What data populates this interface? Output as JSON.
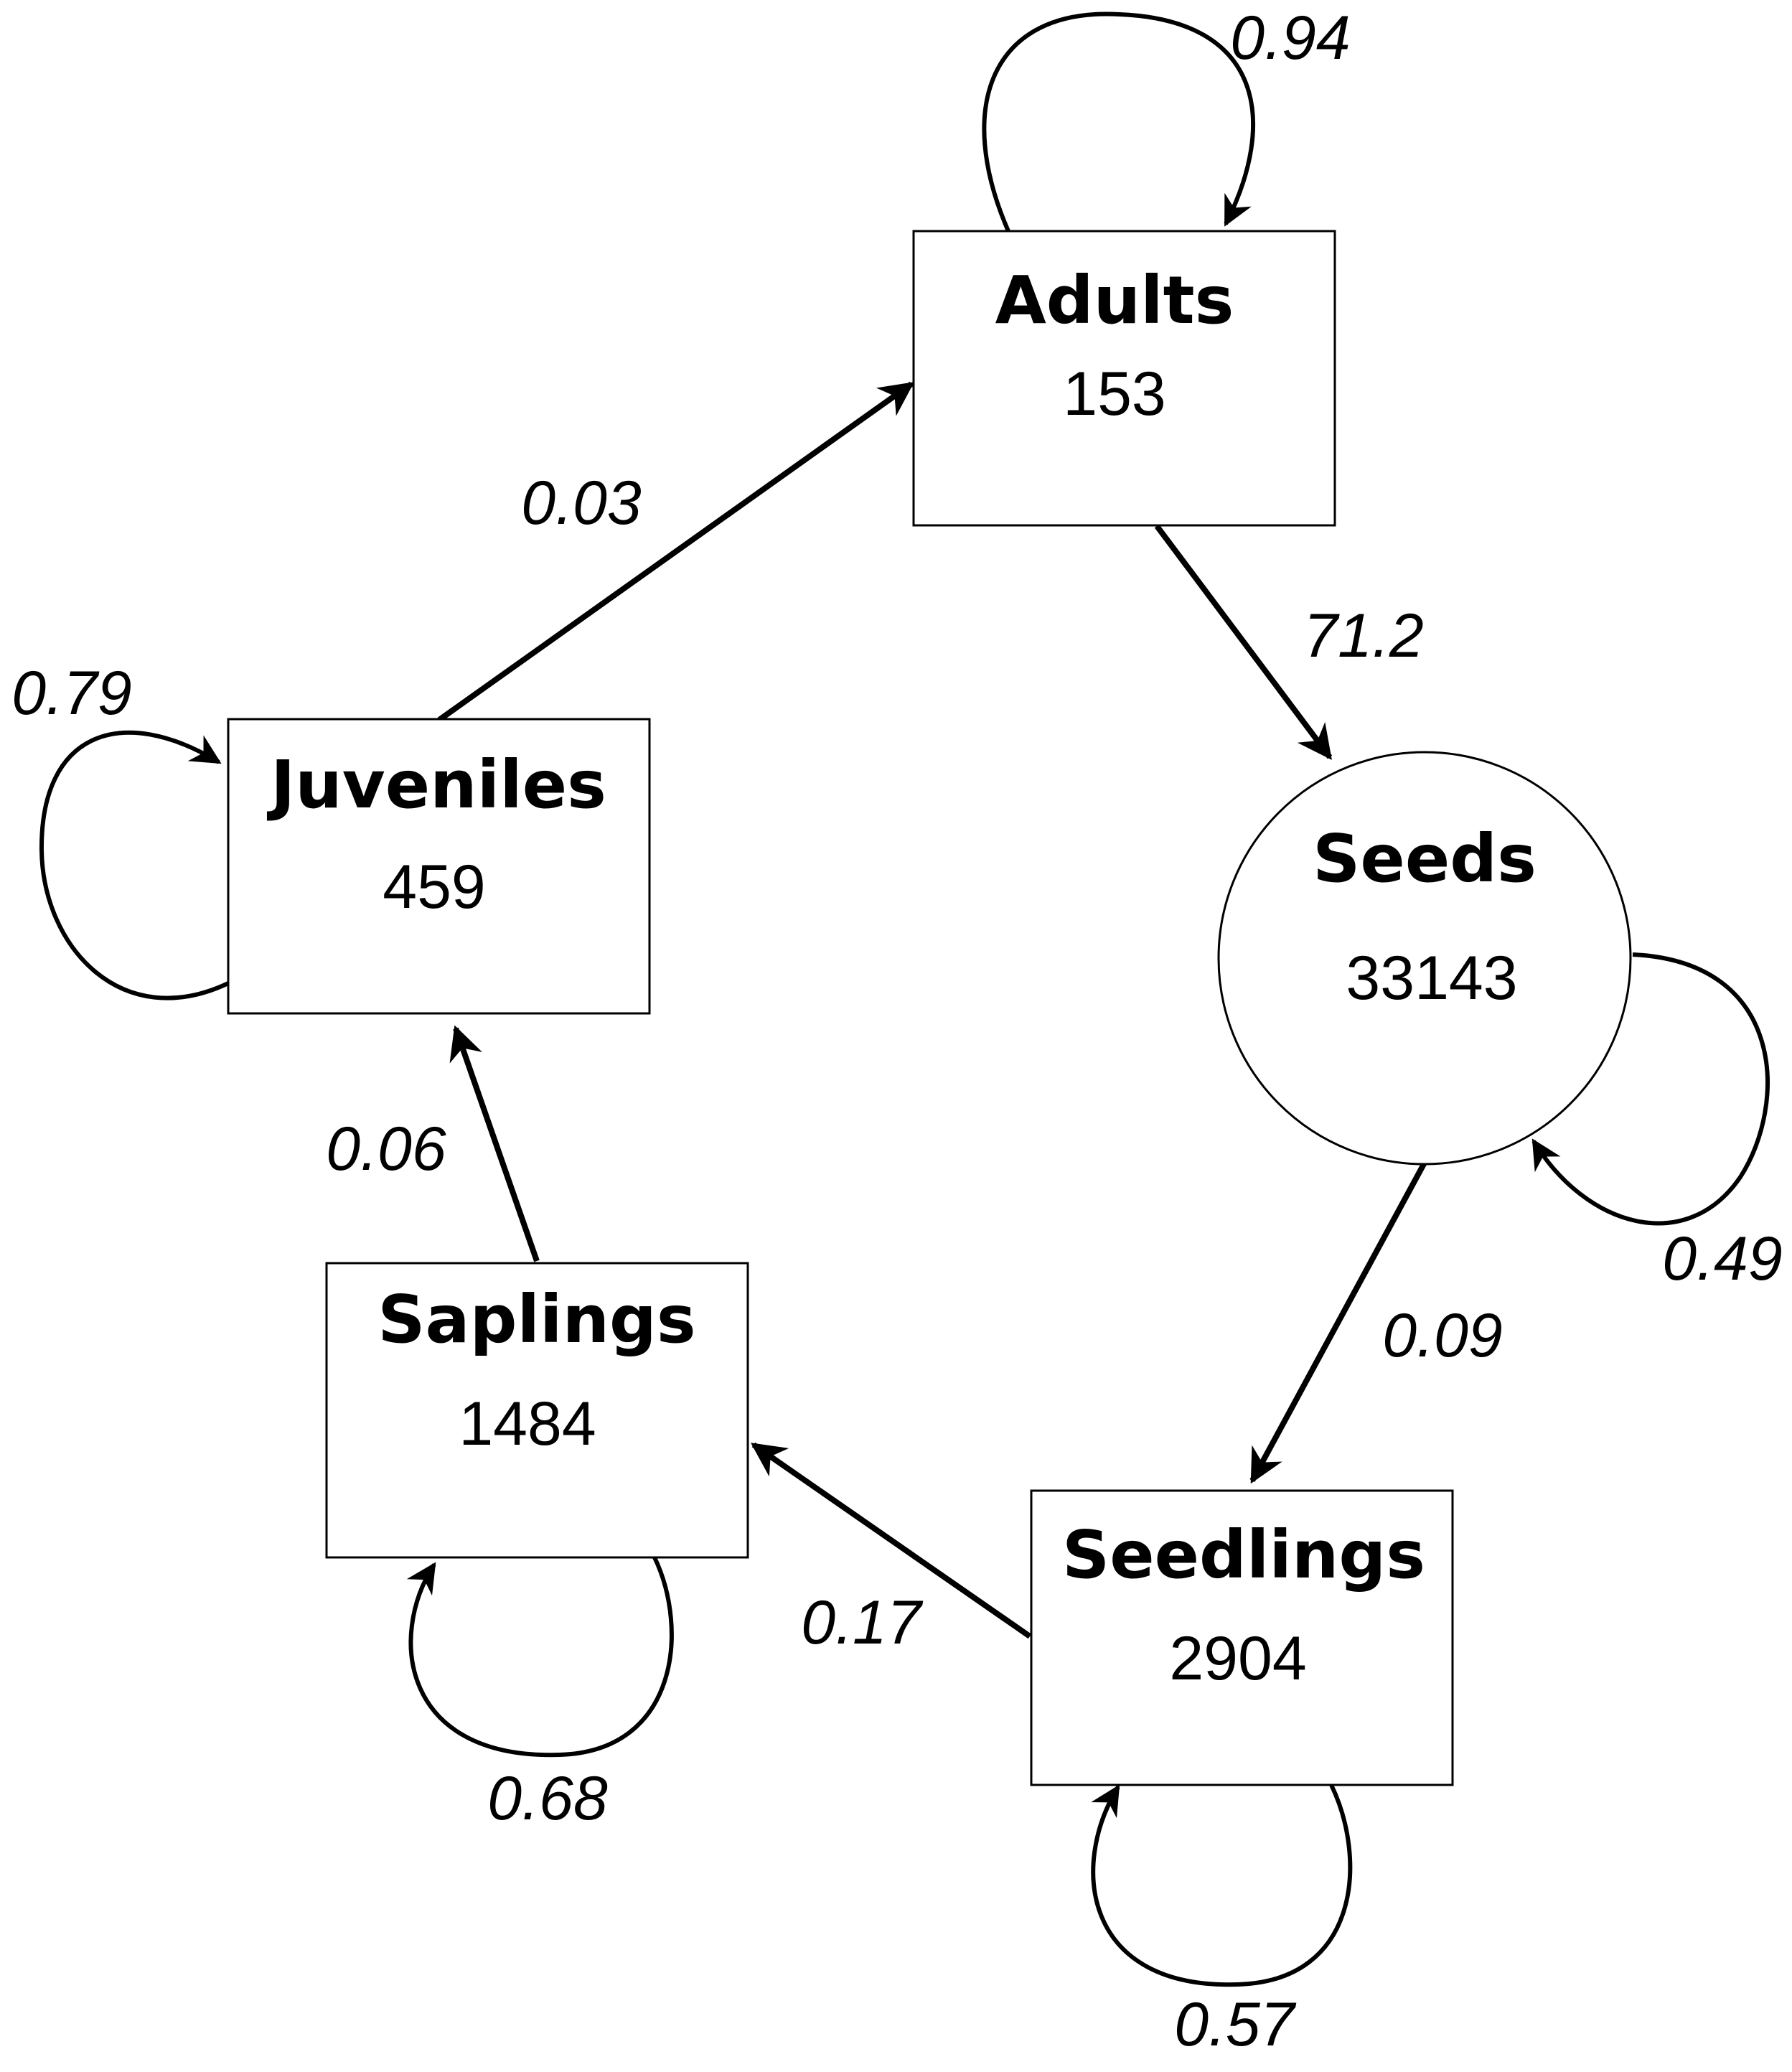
{
  "nodes": {
    "adults": {
      "title": "Adults",
      "count": "153"
    },
    "juveniles": {
      "title": "Juveniles",
      "count": "459"
    },
    "seeds": {
      "title": "Seeds",
      "count": "33143"
    },
    "saplings": {
      "title": "Saplings",
      "count": "1484"
    },
    "seedlings": {
      "title": "Seedlings",
      "count": "2904"
    }
  },
  "transitions": {
    "adults_to_seeds": "71.2",
    "seeds_to_seedlings": "0.09",
    "seedlings_to_saplings": "0.17",
    "saplings_to_juveniles": "0.06",
    "juveniles_to_adults": "0.03"
  },
  "self_loops": {
    "adults": "0.94",
    "juveniles": "0.79",
    "seeds": "0.49",
    "saplings": "0.68",
    "seedlings": "0.57"
  }
}
